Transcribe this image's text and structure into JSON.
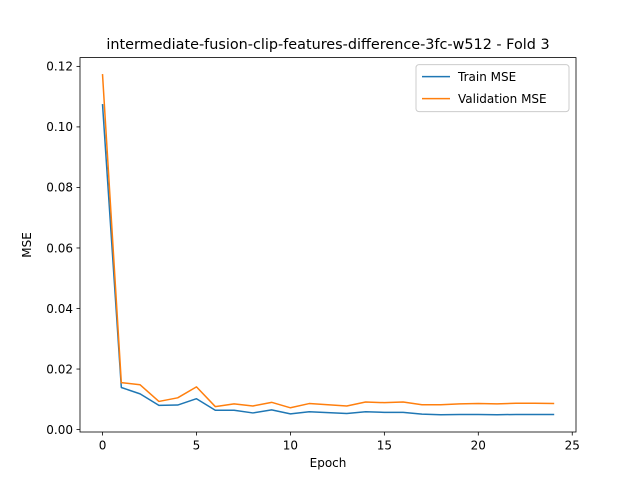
{
  "chart_data": {
    "type": "line",
    "title": "intermediate-fusion-clip-features-difference-3fc-w512 - Fold 3",
    "xlabel": "Epoch",
    "ylabel": "MSE",
    "xlim": [
      -1.2,
      25.2
    ],
    "ylim": [
      -0.0008,
      0.1229
    ],
    "xticks": [
      0,
      5,
      10,
      15,
      20,
      25
    ],
    "xtick_labels": [
      "0",
      "5",
      "10",
      "15",
      "20",
      "25"
    ],
    "yticks": [
      0.0,
      0.02,
      0.04,
      0.06,
      0.08,
      0.1,
      0.12
    ],
    "ytick_labels": [
      "0.00",
      "0.02",
      "0.04",
      "0.06",
      "0.08",
      "0.10",
      "0.12"
    ],
    "grid": false,
    "legend_position": "top-right",
    "x": [
      0,
      1,
      2,
      3,
      4,
      5,
      6,
      7,
      8,
      9,
      10,
      11,
      12,
      13,
      14,
      15,
      16,
      17,
      18,
      19,
      20,
      21,
      22,
      23,
      24
    ],
    "series": [
      {
        "name": "Train MSE",
        "color": "#1f77b4",
        "values": [
          0.1073,
          0.0139,
          0.0118,
          0.008,
          0.0081,
          0.0102,
          0.0064,
          0.0064,
          0.0055,
          0.0065,
          0.0052,
          0.0059,
          0.0056,
          0.0053,
          0.0059,
          0.0057,
          0.0057,
          0.0051,
          0.0049,
          0.005,
          0.005,
          0.0049,
          0.005,
          0.005,
          0.005
        ]
      },
      {
        "name": "Validation MSE",
        "color": "#ff7f0e",
        "values": [
          0.1172,
          0.0155,
          0.0148,
          0.0093,
          0.0105,
          0.0141,
          0.0076,
          0.0085,
          0.0078,
          0.009,
          0.0072,
          0.0086,
          0.0082,
          0.0078,
          0.0091,
          0.0089,
          0.0091,
          0.0082,
          0.0082,
          0.0085,
          0.0086,
          0.0085,
          0.0087,
          0.0087,
          0.0086
        ]
      }
    ]
  }
}
